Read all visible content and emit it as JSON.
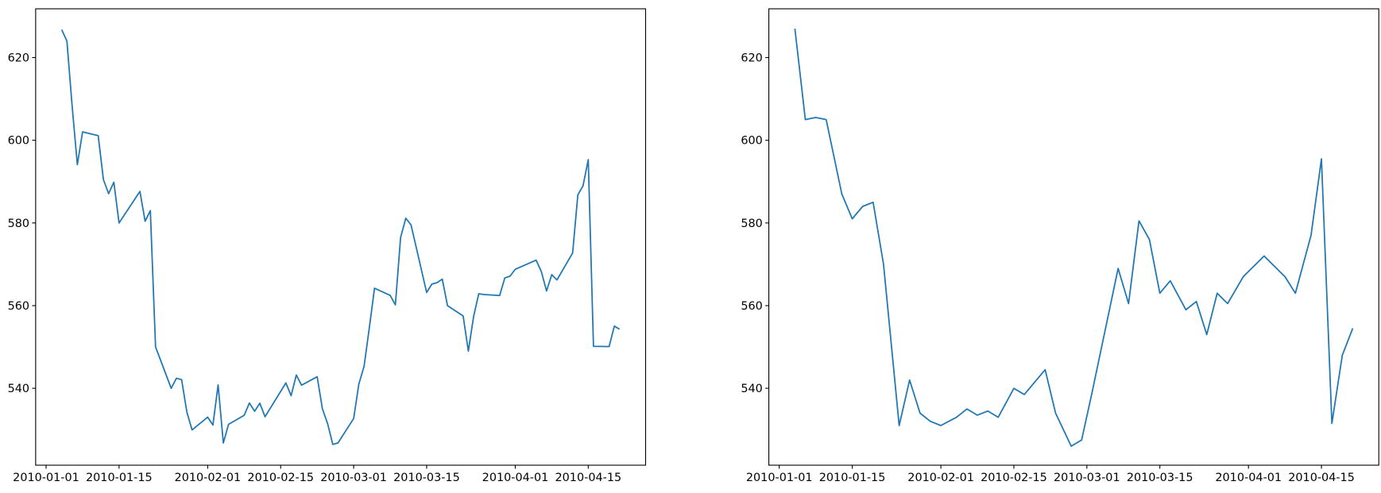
{
  "chart_data": [
    {
      "type": "line",
      "color": "#1f77b4",
      "x": [
        "2010-01-04",
        "2010-01-05",
        "2010-01-06",
        "2010-01-07",
        "2010-01-08",
        "2010-01-11",
        "2010-01-12",
        "2010-01-13",
        "2010-01-14",
        "2010-01-15",
        "2010-01-19",
        "2010-01-20",
        "2010-01-21",
        "2010-01-22",
        "2010-01-25",
        "2010-01-26",
        "2010-01-27",
        "2010-01-28",
        "2010-01-29",
        "2010-02-01",
        "2010-02-02",
        "2010-02-03",
        "2010-02-04",
        "2010-02-05",
        "2010-02-08",
        "2010-02-09",
        "2010-02-10",
        "2010-02-11",
        "2010-02-12",
        "2010-02-16",
        "2010-02-17",
        "2010-02-18",
        "2010-02-19",
        "2010-02-22",
        "2010-02-23",
        "2010-02-24",
        "2010-02-25",
        "2010-02-26",
        "2010-03-01",
        "2010-03-02",
        "2010-03-03",
        "2010-03-04",
        "2010-03-05",
        "2010-03-08",
        "2010-03-09",
        "2010-03-10",
        "2010-03-11",
        "2010-03-12",
        "2010-03-15",
        "2010-03-16",
        "2010-03-17",
        "2010-03-18",
        "2010-03-19",
        "2010-03-22",
        "2010-03-23",
        "2010-03-24",
        "2010-03-25",
        "2010-03-26",
        "2010-03-29",
        "2010-03-30",
        "2010-03-31",
        "2010-04-01",
        "2010-04-05",
        "2010-04-06",
        "2010-04-07",
        "2010-04-08",
        "2010-04-09",
        "2010-04-12",
        "2010-04-13",
        "2010-04-14",
        "2010-04-15",
        "2010-04-16",
        "2010-04-19",
        "2010-04-20",
        "2010-04-21"
      ],
      "values": [
        626.75,
        623.99,
        608.26,
        594.1,
        602.02,
        601.11,
        590.48,
        587.09,
        589.85,
        580.0,
        587.62,
        580.41,
        582.98,
        550.01,
        540.0,
        542.42,
        542.1,
        534.29,
        529.94,
        533.02,
        531.12,
        540.82,
        526.78,
        531.29,
        533.47,
        536.44,
        534.45,
        536.4,
        533.12,
        541.3,
        538.21,
        543.22,
        540.76,
        542.8,
        535.07,
        531.47,
        526.43,
        526.8,
        532.69,
        541.06,
        545.32,
        554.59,
        564.21,
        562.48,
        560.19,
        576.45,
        581.14,
        579.54,
        563.18,
        565.2,
        565.56,
        566.4,
        560.0,
        557.5,
        549.0,
        557.33,
        562.88,
        562.69,
        562.45,
        566.71,
        567.12,
        568.8,
        571.01,
        568.22,
        563.54,
        567.49,
        566.22,
        572.73,
        586.77,
        589.0,
        595.3,
        550.15,
        550.1,
        555.04,
        554.3
      ],
      "xlim": [
        "2009-12-30",
        "2010-04-26"
      ],
      "ylim": [
        521.4,
        631.8
      ],
      "xticks": [
        "2010-01-01",
        "2010-01-15",
        "2010-02-01",
        "2010-02-15",
        "2010-03-01",
        "2010-03-15",
        "2010-04-01",
        "2010-04-15"
      ],
      "yticks": [
        540,
        560,
        580,
        600,
        620
      ]
    },
    {
      "type": "line",
      "color": "#1f77b4",
      "x": [
        "2010-01-04",
        "2010-01-06",
        "2010-01-08",
        "2010-01-10",
        "2010-01-13",
        "2010-01-15",
        "2010-01-17",
        "2010-01-19",
        "2010-01-21",
        "2010-01-24",
        "2010-01-26",
        "2010-01-28",
        "2010-01-30",
        "2010-02-01",
        "2010-02-04",
        "2010-02-06",
        "2010-02-08",
        "2010-02-10",
        "2010-02-12",
        "2010-02-15",
        "2010-02-17",
        "2010-02-19",
        "2010-02-21",
        "2010-02-23",
        "2010-02-26",
        "2010-02-28",
        "2010-03-02",
        "2010-03-07",
        "2010-03-09",
        "2010-03-11",
        "2010-03-13",
        "2010-03-15",
        "2010-03-17",
        "2010-03-20",
        "2010-03-22",
        "2010-03-24",
        "2010-03-26",
        "2010-03-28",
        "2010-03-31",
        "2010-04-04",
        "2010-04-08",
        "2010-04-10",
        "2010-04-13",
        "2010-04-15",
        "2010-04-17",
        "2010-04-19",
        "2010-04-21"
      ],
      "values": [
        627,
        605,
        605.5,
        605,
        587,
        581,
        584,
        585,
        570,
        531,
        542,
        534,
        532,
        531,
        533,
        535,
        533.5,
        534.5,
        533,
        540,
        538.5,
        541.5,
        544.5,
        534,
        526,
        527.5,
        539,
        569,
        560.5,
        580.5,
        576,
        563,
        566,
        559,
        561,
        553,
        563,
        560.5,
        567,
        572,
        567,
        563,
        577,
        595.5,
        531.5,
        548,
        554.5
      ],
      "xlim": [
        "2009-12-30",
        "2010-04-26"
      ],
      "ylim": [
        521.4,
        631.8
      ],
      "xticks": [
        "2010-01-01",
        "2010-01-15",
        "2010-02-01",
        "2010-02-15",
        "2010-03-01",
        "2010-03-15",
        "2010-04-01",
        "2010-04-15"
      ],
      "yticks": [
        540,
        560,
        580,
        600,
        620
      ]
    }
  ]
}
